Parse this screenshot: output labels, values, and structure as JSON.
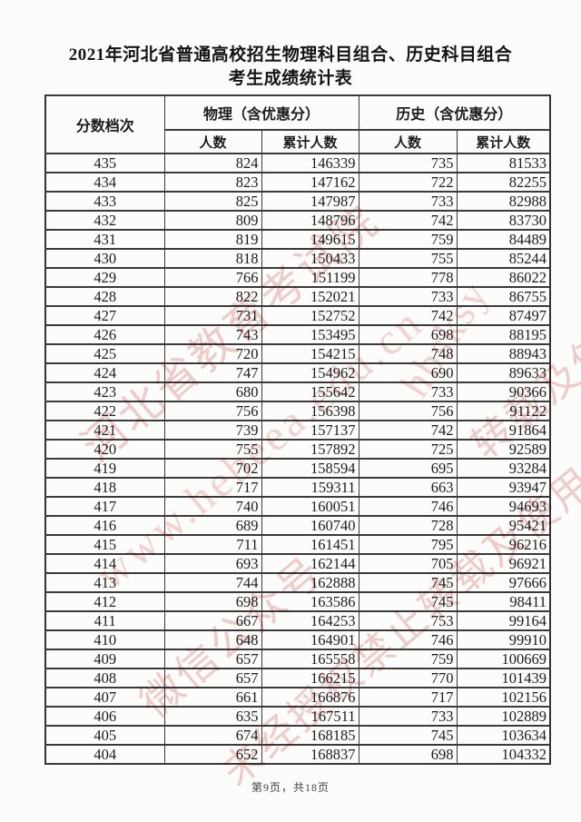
{
  "page": {
    "title_line1": "2021年河北省普通高校招生物理科目组合、历史科目组合",
    "title_line2": "考生成绩统计表",
    "footer": "第9页，共18页"
  },
  "table": {
    "headers": {
      "score": "分数档次",
      "physics_group": "物理（含优惠分）",
      "history_group": "历史（含优惠分）",
      "count": "人数",
      "cumulative": "累计人数",
      "count2": "人数",
      "cumulative2": "累计人数"
    },
    "rows": [
      [
        435,
        824,
        146339,
        735,
        81533
      ],
      [
        434,
        823,
        147162,
        722,
        82255
      ],
      [
        433,
        825,
        147987,
        733,
        82988
      ],
      [
        432,
        809,
        148796,
        742,
        83730
      ],
      [
        431,
        819,
        149615,
        759,
        84489
      ],
      [
        430,
        818,
        150433,
        755,
        85244
      ],
      [
        429,
        766,
        151199,
        778,
        86022
      ],
      [
        428,
        822,
        152021,
        733,
        86755
      ],
      [
        427,
        731,
        152752,
        742,
        87497
      ],
      [
        426,
        743,
        153495,
        698,
        88195
      ],
      [
        425,
        720,
        154215,
        748,
        88943
      ],
      [
        424,
        747,
        154962,
        690,
        89633
      ],
      [
        423,
        680,
        155642,
        733,
        90366
      ],
      [
        422,
        756,
        156398,
        756,
        91122
      ],
      [
        421,
        739,
        157137,
        742,
        91864
      ],
      [
        420,
        755,
        157892,
        725,
        92589
      ],
      [
        419,
        702,
        158594,
        695,
        93284
      ],
      [
        418,
        717,
        159311,
        663,
        93947
      ],
      [
        417,
        740,
        160051,
        746,
        94693
      ],
      [
        416,
        689,
        160740,
        728,
        95421
      ],
      [
        415,
        711,
        161451,
        795,
        96216
      ],
      [
        414,
        693,
        162144,
        705,
        96921
      ],
      [
        413,
        744,
        162888,
        745,
        97666
      ],
      [
        412,
        698,
        163586,
        745,
        98411
      ],
      [
        411,
        667,
        164253,
        753,
        99164
      ],
      [
        410,
        648,
        164901,
        746,
        99910
      ],
      [
        409,
        657,
        165558,
        759,
        100669
      ],
      [
        408,
        657,
        166215,
        770,
        101439
      ],
      [
        407,
        661,
        166876,
        717,
        102156
      ],
      [
        406,
        635,
        167511,
        733,
        102889
      ],
      [
        405,
        674,
        168185,
        745,
        103634
      ],
      [
        404,
        652,
        168837,
        698,
        104332
      ]
    ]
  },
  "watermark": {
    "color": "#d66964",
    "lines": [
      "河北省教育考试院",
      "www.hebeea.edu.cn",
      "微信公众号",
      "hbsksy",
      "未经授权禁止转载及使用",
      "转载及使用"
    ]
  }
}
